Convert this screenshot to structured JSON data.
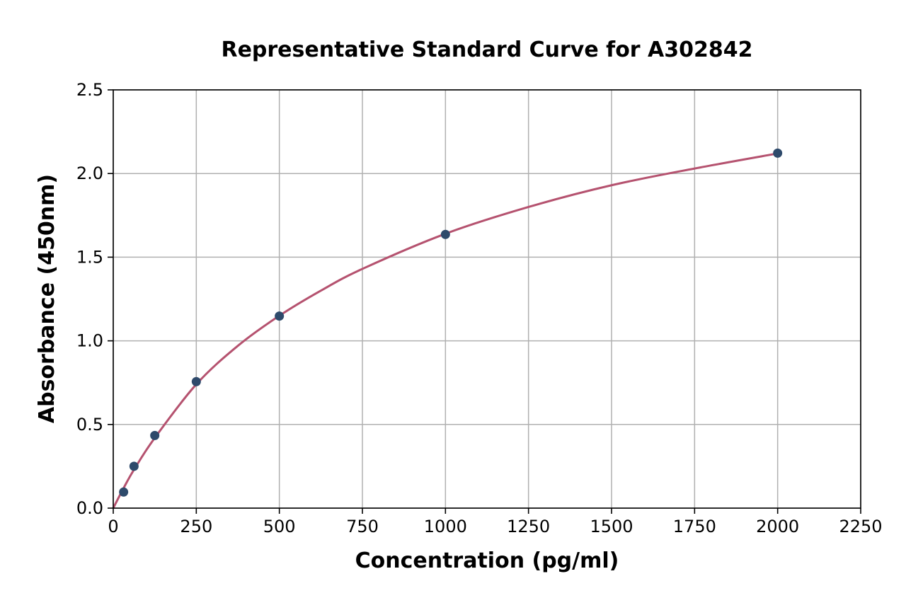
{
  "chart_data": {
    "type": "scatter",
    "title": "Representative Standard Curve for A302842",
    "xlabel": "Concentration (pg/ml)",
    "ylabel": "Absorbance (450nm)",
    "xlim": [
      0,
      2250
    ],
    "ylim": [
      0,
      2.5
    ],
    "x_ticks": [
      "0",
      "250",
      "500",
      "750",
      "1000",
      "1250",
      "1500",
      "1750",
      "2000",
      "2250"
    ],
    "y_ticks": [
      "0.0",
      "0.5",
      "1.0",
      "1.5",
      "2.0",
      "2.5"
    ],
    "grid": true,
    "series": [
      {
        "type": "scatter",
        "x": [
          31.25,
          62.5,
          125,
          250,
          500,
          1000,
          2000
        ],
        "y": [
          0.096,
          0.25,
          0.434,
          0.756,
          1.148,
          1.636,
          2.122
        ]
      },
      {
        "type": "line",
        "fit": "fitted curve",
        "x": [
          0,
          31.25,
          62.5,
          125,
          250,
          375,
          500,
          625,
          750,
          1000,
          1250,
          1500,
          1750,
          2000
        ],
        "y": [
          0.0,
          0.12,
          0.23,
          0.42,
          0.74,
          0.97,
          1.15,
          1.3,
          1.43,
          1.64,
          1.8,
          1.93,
          2.03,
          2.12
        ]
      }
    ],
    "colors": {
      "points": "#2e4a6b",
      "curve": "#b5526f",
      "grid": "#b0b0b0"
    }
  }
}
